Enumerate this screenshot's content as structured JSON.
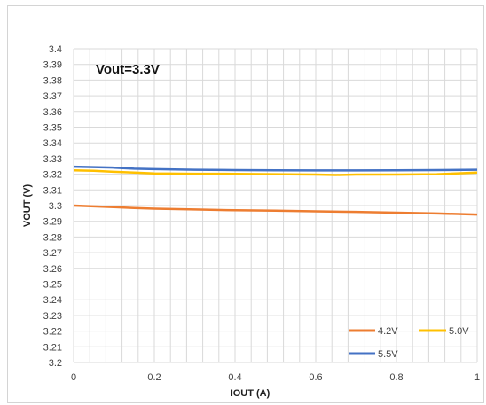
{
  "chart_data": {
    "type": "line",
    "title": "",
    "annotation": "Vout=3.3V",
    "xlabel": "IOUT (A)",
    "ylabel": "VOUT (V)",
    "xlim": [
      0,
      1
    ],
    "ylim": [
      3.2,
      3.4
    ],
    "x_ticks": [
      "0",
      "0.2",
      "0.4",
      "0.6",
      "0.8",
      "1"
    ],
    "y_ticks": [
      "3.4",
      "3.39",
      "3.38",
      "3.37",
      "3.36",
      "3.35",
      "3.34",
      "3.33",
      "3.32",
      "3.31",
      "3.3",
      "3.29",
      "3.28",
      "3.27",
      "3.26",
      "3.25",
      "3.24",
      "3.23",
      "3.22",
      "3.21",
      "3.2"
    ],
    "grid": true,
    "legend_position": "bottom-right",
    "series": [
      {
        "name": "4.2V",
        "color": "#ed7d31",
        "x": [
          0,
          0.05,
          0.1,
          0.15,
          0.2,
          0.3,
          0.4,
          0.5,
          0.6,
          0.7,
          0.8,
          0.9,
          1.0
        ],
        "values": [
          3.3,
          3.2995,
          3.299,
          3.2985,
          3.298,
          3.2975,
          3.297,
          3.2967,
          3.2963,
          3.296,
          3.2955,
          3.295,
          3.2943
        ]
      },
      {
        "name": "5.0V",
        "color": "#ffc000",
        "x": [
          0,
          0.05,
          0.1,
          0.15,
          0.2,
          0.3,
          0.4,
          0.5,
          0.6,
          0.65,
          0.7,
          0.8,
          0.9,
          1.0
        ],
        "values": [
          3.3225,
          3.3222,
          3.3215,
          3.321,
          3.3205,
          3.3203,
          3.3202,
          3.32,
          3.3198,
          3.3195,
          3.3198,
          3.3198,
          3.32,
          3.321
        ]
      },
      {
        "name": "5.5V",
        "color": "#4472c4",
        "x": [
          0,
          0.05,
          0.1,
          0.15,
          0.2,
          0.3,
          0.4,
          0.5,
          0.6,
          0.7,
          0.8,
          0.9,
          1.0
        ],
        "values": [
          3.3248,
          3.3245,
          3.3242,
          3.3235,
          3.3232,
          3.3228,
          3.3226,
          3.3225,
          3.3224,
          3.3224,
          3.3225,
          3.3226,
          3.3228
        ]
      }
    ]
  }
}
